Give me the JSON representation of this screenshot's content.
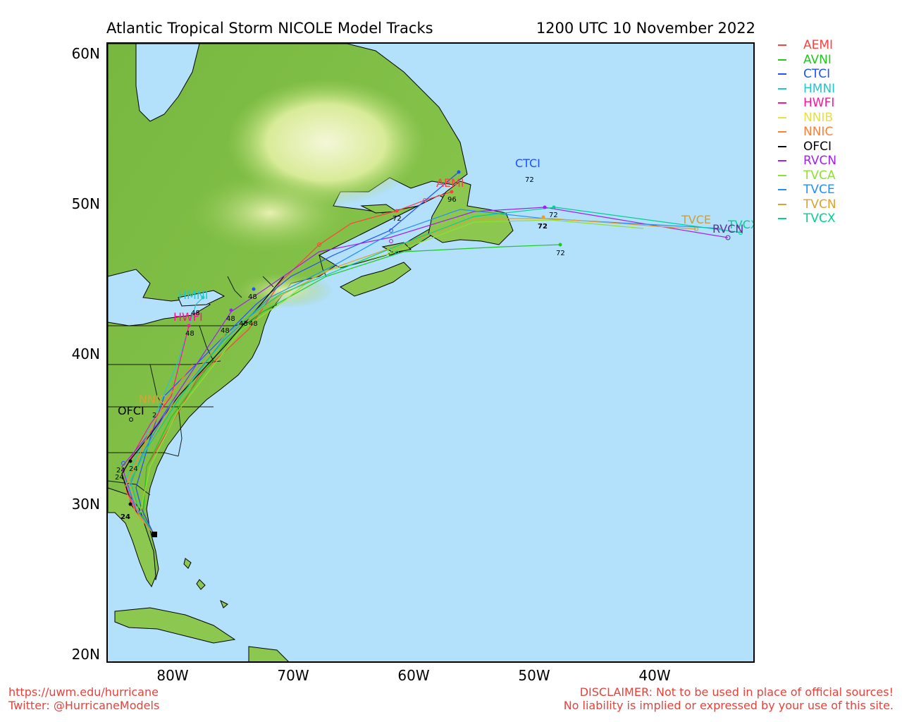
{
  "header": {
    "title": "Atlantic Tropical Storm NICOLE Model Tracks",
    "datetime": "1200 UTC 10 November 2022"
  },
  "axes": {
    "lat_labels": [
      "60N",
      "50N",
      "40N",
      "30N",
      "20N"
    ],
    "lon_labels": [
      "80W",
      "70W",
      "60W",
      "50W",
      "40W"
    ]
  },
  "colors": {
    "ocean": "#b3e0fa",
    "land": "#8cc850",
    "highland": "#f0f5c8"
  },
  "legend": [
    {
      "name": "AEMI",
      "color": "#ff4040"
    },
    {
      "name": "AVNI",
      "color": "#20c820"
    },
    {
      "name": "CTCI",
      "color": "#2050ff"
    },
    {
      "name": "HMNI",
      "color": "#20c8c8"
    },
    {
      "name": "HWFI",
      "color": "#ff1493"
    },
    {
      "name": "NNIB",
      "color": "#e8e040"
    },
    {
      "name": "NNIC",
      "color": "#ff8030"
    },
    {
      "name": "OFCI",
      "color": "#000000"
    },
    {
      "name": "RVCN",
      "color": "#a020f0"
    },
    {
      "name": "TVCA",
      "color": "#90e030"
    },
    {
      "name": "TVCE",
      "color": "#1e90ff"
    },
    {
      "name": "TVCN",
      "color": "#e0a030"
    },
    {
      "name": "TVCX",
      "color": "#00d090"
    }
  ],
  "track_labels": [
    {
      "text": "CTCI",
      "color": "#2050ff"
    },
    {
      "text": "AEMI",
      "color": "#ff4040"
    },
    {
      "text": "HMNI",
      "color": "#20c8c8"
    },
    {
      "text": "HWFI",
      "color": "#ff1493"
    },
    {
      "text": "OFCI",
      "color": "#000000"
    },
    {
      "text": "NNIC",
      "color": "#e0a030"
    },
    {
      "text": "TVCE",
      "color": "#c8a040"
    },
    {
      "text": "TVCX",
      "color": "#00d090"
    },
    {
      "text": "RVCN",
      "color": "#6030a0"
    }
  ],
  "hour_labels": [
    "72",
    "96",
    "72",
    "72",
    "72",
    "72",
    "48",
    "48",
    "48",
    "48",
    "48",
    "48",
    "48",
    "24",
    "24",
    "24",
    "24",
    "2"
  ],
  "footer": {
    "url": "https://uwm.edu/hurricane",
    "twitter": "Twitter: @HurricaneModels",
    "disclaimer1": "DISCLAIMER: Not to be used in place of official sources!",
    "disclaimer2": "No liability is implied or expressed by your use of this site."
  }
}
